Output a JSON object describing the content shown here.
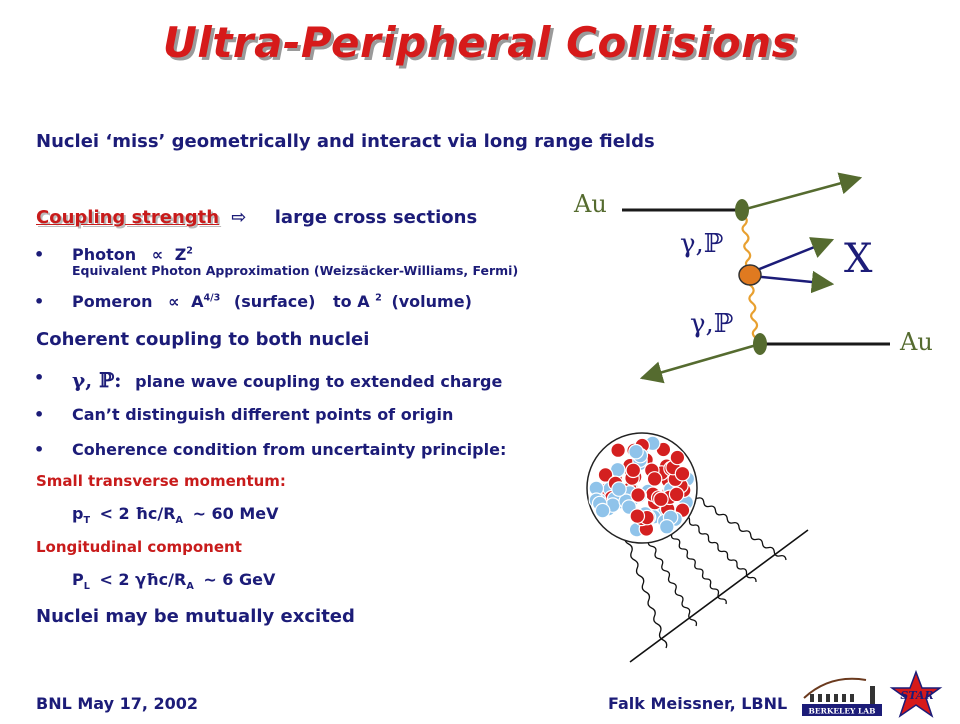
{
  "title": "Ultra-Peripheral Collisions",
  "intro": "Nuclei ‘miss’ geometrically and interact via long range fields",
  "coupling": {
    "label": "Coupling strength",
    "arrow": "⇨",
    "result": "large cross sections"
  },
  "photon": {
    "name": "Photon",
    "propto": "∝",
    "base": "Z",
    "exp": "2",
    "note": "Equivalent Photon Approximation (Weizsäcker-Williams, Fermi)"
  },
  "pomeron": {
    "name": "Pomeron",
    "propto": "∝",
    "base": "A",
    "exp": "4/3",
    "surface": "(surface)",
    "to": "to A",
    "exp2": "2",
    "volume": "(volume)"
  },
  "coherent_heading": "Coherent coupling to both nuclei",
  "coherent_items": {
    "gamma_p": "γ, ℙ:",
    "plane_wave": "plane wave coupling to extended charge",
    "origin": "Can’t distinguish different points of origin",
    "uncertainty": "Coherence condition from uncertainty principle:"
  },
  "transverse": {
    "label": "Small transverse momentum:",
    "lhs": "p",
    "lhs_sub": "T",
    "rel": "< 2 ħc/R",
    "rel_sub": "A",
    "approx": "~ 60 MeV"
  },
  "longitudinal": {
    "label": "Longitudinal component",
    "lhs": "P",
    "lhs_sub": "L",
    "rel": "< 2 γħc/R",
    "rel_sub": "A",
    "approx": "~ 6 GeV"
  },
  "excited": "Nuclei may be mutually excited",
  "diagram": {
    "au_top": "Au",
    "au_bottom": "Au",
    "exchange_top": "γ,ℙ",
    "exchange_bottom": "γ,ℙ",
    "x_label": "X"
  },
  "footer": {
    "left": "BNL May 17, 2002",
    "right": "Falk Meissner, LBNL"
  },
  "logos": {
    "berkeley": "BERKELEY LAB",
    "star": "STAR"
  },
  "colors": {
    "title_red": "#d61a1a",
    "navy_text": "#1c1c78",
    "coupling_red": "#c81b1b",
    "arrow_olive": "#556b2f",
    "wavy_orange": "#e8a030",
    "proton_red": "#d42020",
    "neutron_blue": "#8fc3ea"
  }
}
